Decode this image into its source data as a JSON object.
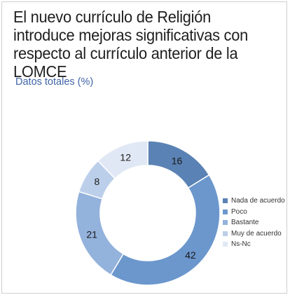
{
  "chart_data": {
    "type": "pie",
    "variant": "donut",
    "title": "El nuevo currículo de Religión introduce mejoras significativas con respecto al currículo anterior de la LOMCE",
    "subtitle": "Datos totales (%)",
    "categories": [
      "Nada de acuerdo",
      "Poco",
      "Bastante",
      "Muy de acuerdo",
      "Ns-Nc"
    ],
    "values": [
      16,
      42,
      21,
      8,
      12
    ],
    "colors": [
      "#5a82b4",
      "#6b97cd",
      "#93b2dc",
      "#bccfea",
      "#e1e8f5"
    ],
    "label_colors": [
      "#1a1a1a",
      "#1a1a1a",
      "#1a1a1a",
      "#1a1a1a",
      "#1a1a1a"
    ],
    "legend_position": "right"
  }
}
